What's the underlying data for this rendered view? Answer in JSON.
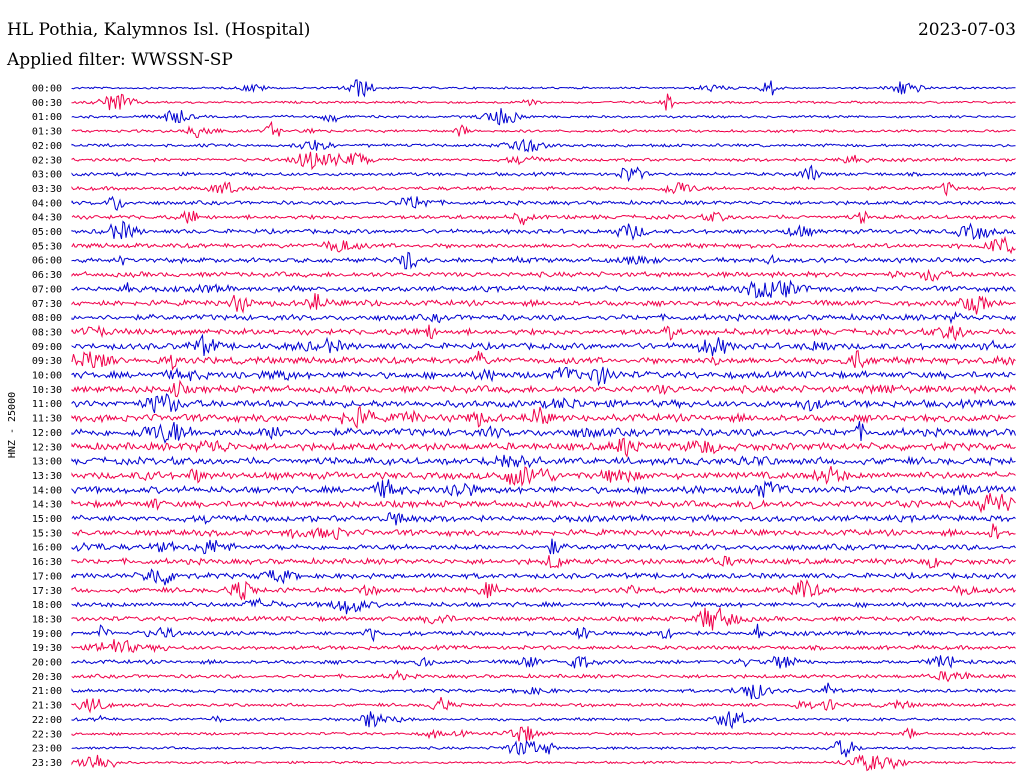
{
  "header": {
    "station": "HL Pothia, Kalymnos Isl. (Hospital)",
    "date": "2023-07-03",
    "filter": "Applied filter: WWSSN-SP"
  },
  "chart_data": {
    "type": "line",
    "ylabel": "HNZ - 25000",
    "traces": [
      "00:00",
      "00:30",
      "01:00",
      "01:30",
      "02:00",
      "02:30",
      "03:00",
      "03:30",
      "04:00",
      "04:30",
      "05:00",
      "05:30",
      "06:00",
      "06:30",
      "07:00",
      "07:30",
      "08:00",
      "08:30",
      "09:00",
      "09:30",
      "10:00",
      "10:30",
      "11:00",
      "11:30",
      "12:00",
      "12:30",
      "13:00",
      "13:30",
      "14:00",
      "14:30",
      "15:00",
      "15:30",
      "16:00",
      "16:30",
      "17:00",
      "17:30",
      "18:00",
      "18:30",
      "19:00",
      "19:30",
      "20:00",
      "20:30",
      "21:00",
      "21:30",
      "22:00",
      "22:30",
      "23:00",
      "23:30"
    ],
    "colors": [
      "#0000d0",
      "#f0004a"
    ],
    "trace_duration_minutes": 30
  }
}
